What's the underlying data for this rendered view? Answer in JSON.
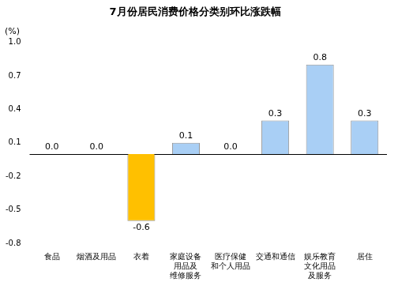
{
  "chart_data": {
    "type": "bar",
    "title": "7月份居民消费价格分类别环比涨跌幅",
    "ylabel": "(%)",
    "categories": [
      "食品",
      "烟酒及用品",
      "衣着",
      "家庭设备\n用品及\n维修服务",
      "医疗保健\n和个人用品",
      "交通和通信",
      "娱乐教育\n文化用品\n及服务",
      "居住"
    ],
    "values": [
      0.0,
      0.0,
      -0.6,
      0.1,
      0.0,
      0.3,
      0.8,
      0.3
    ],
    "value_labels": [
      "0.0",
      "0.0",
      "-0.6",
      "0.1",
      "0.0",
      "0.3",
      "0.8",
      "0.3"
    ],
    "colors": [
      "#a9cff5",
      "#a9cff5",
      "#ffc000",
      "#a9cff5",
      "#a9cff5",
      "#a9cff5",
      "#a9cff5",
      "#a9cff5"
    ],
    "ylim": [
      -0.8,
      1.0
    ],
    "yticks": [
      -0.8,
      -0.5,
      -0.2,
      0.1,
      0.4,
      0.7,
      {
        "value": 1.0,
        "label": "1.0"
      }
    ],
    "grid": false,
    "data_labels": true
  }
}
